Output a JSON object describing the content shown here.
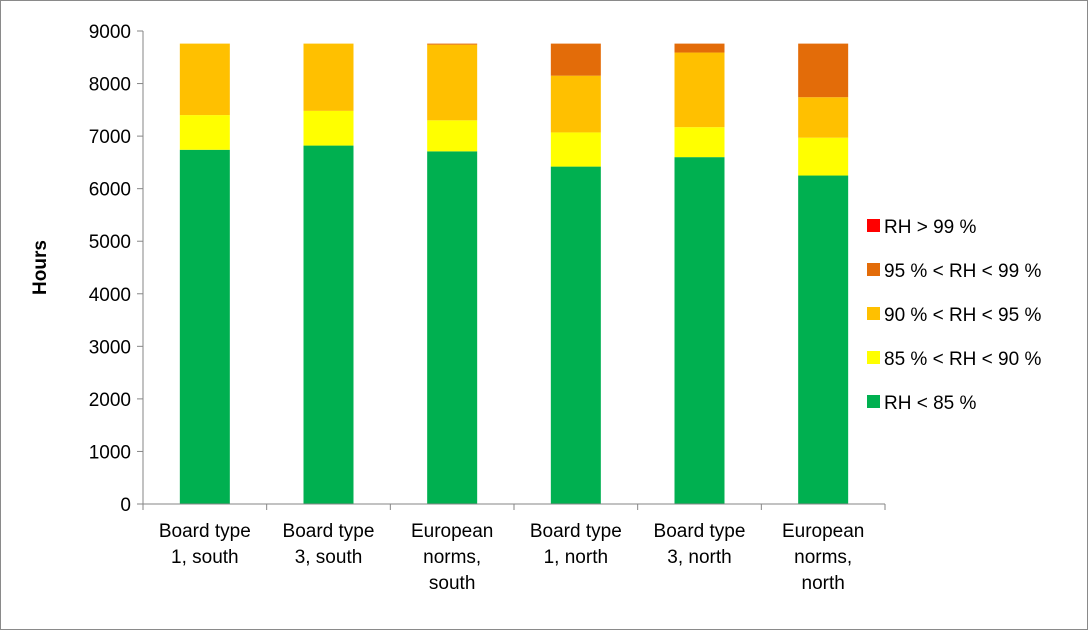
{
  "chart_data": {
    "type": "bar",
    "stacked": true,
    "categories": [
      [
        "Board type",
        "1, south"
      ],
      [
        "Board type",
        "3, south"
      ],
      [
        "European",
        "norms,",
        "south"
      ],
      [
        "Board type",
        "1, north"
      ],
      [
        "Board type",
        "3, north"
      ],
      [
        "European",
        "norms,",
        "north"
      ]
    ],
    "series": [
      {
        "name": "RH < 85 %",
        "color": "#00b050",
        "values": [
          6740,
          6820,
          6710,
          6420,
          6600,
          6250
        ]
      },
      {
        "name": "85 % < RH < 90 %",
        "color": "#ffff00",
        "values": [
          660,
          660,
          590,
          650,
          570,
          720
        ]
      },
      {
        "name": "90 % < RH < 95 %",
        "color": "#ffc000",
        "values": [
          1360,
          1280,
          1440,
          1080,
          1420,
          770
        ]
      },
      {
        "name": "95 % < RH < 99 %",
        "color": "#e36c09",
        "values": [
          0,
          0,
          20,
          610,
          170,
          1020
        ]
      },
      {
        "name": "RH > 99 %",
        "color": "#ff0000",
        "values": [
          0,
          0,
          0,
          0,
          0,
          0
        ]
      }
    ],
    "legend_order": [
      "RH > 99 %",
      "95 % < RH < 99 %",
      "90 % < RH < 95 %",
      "85 % < RH < 90 %",
      "RH < 85 %"
    ],
    "ylabel": "Hours",
    "xlabel": "",
    "ylim": [
      0,
      9000
    ],
    "yticks": [
      0,
      1000,
      2000,
      3000,
      4000,
      5000,
      6000,
      7000,
      8000,
      9000
    ],
    "grid": false,
    "legend_position": "right"
  }
}
